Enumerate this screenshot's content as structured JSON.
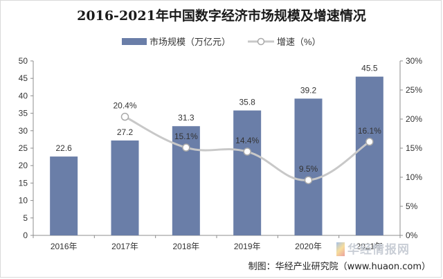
{
  "chart_data": {
    "type": "bar",
    "title": "2016-2021年中国数字经济市场规模及增速情况",
    "categories": [
      "2016年",
      "2017年",
      "2018年",
      "2019年",
      "2020年",
      "2021年"
    ],
    "series": [
      {
        "name": "市场规模（万亿元）",
        "type": "bar",
        "axis": "left",
        "values": [
          22.6,
          27.2,
          31.3,
          35.8,
          39.2,
          45.5
        ],
        "labels": [
          "22.6",
          "27.2",
          "31.3",
          "35.8",
          "39.2",
          "45.5"
        ],
        "color": "#6a7ea8"
      },
      {
        "name": "增速（%）",
        "type": "line",
        "axis": "right",
        "values": [
          null,
          20.4,
          15.1,
          14.4,
          9.5,
          16.1
        ],
        "labels": [
          "",
          "20.4%",
          "15.1%",
          "14.4%",
          "9.5%",
          "16.1%"
        ],
        "color": "#c8c8c8"
      }
    ],
    "y_left": {
      "min": 0,
      "max": 50,
      "step": 5,
      "tick_labels": [
        "0",
        "5",
        "10",
        "15",
        "20",
        "25",
        "30",
        "35",
        "40",
        "45",
        "50"
      ]
    },
    "y_right": {
      "min": 0,
      "max": 30,
      "step": 5,
      "tick_labels": [
        "0%",
        "5%",
        "10%",
        "15%",
        "20%",
        "25%",
        "30%"
      ]
    },
    "grid": false,
    "legend_position": "top"
  },
  "source": "制图：华经产业研究院（www.huaon.com）",
  "watermark": "华经情报网"
}
